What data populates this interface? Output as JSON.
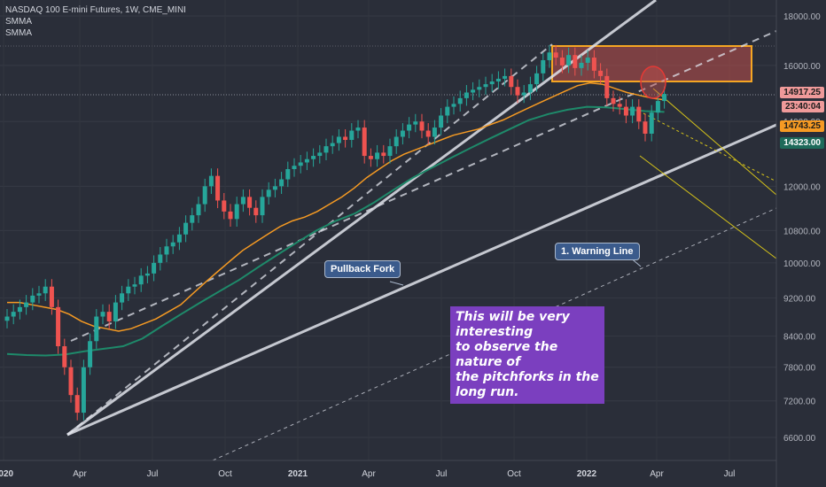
{
  "header": {
    "title": "NASDAQ 100 E-mini Futures, 1W, CME_MINI",
    "indicators": [
      "SMMA",
      "SMMA"
    ]
  },
  "colors": {
    "background": "#2a2e39",
    "up": "#26a69a",
    "down": "#ef5350",
    "smma_fast": "#f59a23",
    "smma_slow": "#1e8a6a",
    "fork_white": "#e0e3eb",
    "fork_yellow": "#d4c21a",
    "zone_fill": "#c0504d",
    "zone_border": "#f5a623"
  },
  "annotations": {
    "pullback_fork": "Pullback Fork",
    "warning_line": "1. Warning Line",
    "note": "This will be very interesting\nto observe the nature of\nthe pitchforks in the\nlong run."
  },
  "price_labels": {
    "current": "14917.25",
    "countdown": "23:40:04",
    "smma_fast": "14743.25",
    "smma_slow": "14323.00"
  },
  "chart_data": {
    "type": "candlestick",
    "x_tick_labels": [
      "2020",
      "Apr",
      "Jul",
      "Oct",
      "2021",
      "Apr",
      "Jul",
      "Oct",
      "2022",
      "Apr",
      "Jul"
    ],
    "y_tick_labels": [
      18000,
      16000,
      14000,
      12000,
      10800,
      10000,
      9200,
      8400,
      7800,
      7200,
      6600
    ],
    "y_tick_text": [
      "18000.00",
      "16000.00",
      "14000.00",
      "12000.00",
      "10800.00",
      "10000.00",
      "9200.00",
      "8400.00",
      "7800.00",
      "7200.00",
      "6600.00"
    ],
    "y_scale": "log",
    "y_range": [
      6100,
      19000
    ],
    "x_range": [
      "2020-01",
      "2022-08"
    ],
    "closes": [
      8800,
      8900,
      9000,
      9100,
      9250,
      9300,
      9450,
      9000,
      8200,
      7800,
      7300,
      7000,
      7800,
      8300,
      8800,
      8900,
      8700,
      9100,
      9300,
      9450,
      9500,
      9700,
      9750,
      10000,
      10200,
      10400,
      10500,
      10700,
      11000,
      11200,
      11500,
      12000,
      12300,
      11600,
      11300,
      11100,
      11500,
      11700,
      11400,
      11200,
      11700,
      11900,
      12000,
      12200,
      12500,
      12600,
      12700,
      12800,
      12900,
      13000,
      13200,
      13300,
      13500,
      13400,
      13700,
      13800,
      12900,
      12800,
      13000,
      12900,
      13200,
      13500,
      13700,
      13900,
      14000,
      13700,
      13500,
      13800,
      14200,
      14500,
      14600,
      14800,
      15000,
      15100,
      15200,
      15300,
      15400,
      15500,
      15600,
      15200,
      14900,
      15000,
      15300,
      15700,
      16200,
      16500,
      16300,
      16000,
      16400,
      15900,
      16100,
      16300,
      15800,
      15600,
      14800,
      14600,
      14500,
      14200,
      14500,
      14000,
      13600,
      14300,
      14700,
      14950
    ],
    "series": [
      {
        "name": "SMMA",
        "values": [
          9100,
          9100,
          9050,
          9000,
          8950,
          8850,
          8700,
          8600,
          8550,
          8500,
          8550,
          8650,
          8750,
          8900,
          9050,
          9300,
          9550,
          9800,
          10050,
          10300,
          10500,
          10700,
          10900,
          11050,
          11150,
          11300,
          11500,
          11700,
          11950,
          12250,
          12500,
          12750,
          12950,
          13100,
          13250,
          13400,
          13550,
          13650,
          13750,
          13900,
          14050,
          14250,
          14450,
          14650,
          14850,
          15050,
          15250,
          15350,
          15300,
          15150,
          15000,
          14900,
          14800,
          14743
        ]
      },
      {
        "name": "SMMA",
        "values": [
          8050,
          8030,
          8020,
          8040,
          8100,
          8150,
          8200,
          8350,
          8600,
          8850,
          9100,
          9350,
          9600,
          9900,
          10200,
          10500,
          10800,
          11050,
          11250,
          11550,
          11900,
          12250,
          12550,
          12850,
          13150,
          13450,
          13750,
          14050,
          14250,
          14400,
          14500,
          14480,
          14420,
          14350,
          14323
        ]
      }
    ]
  }
}
